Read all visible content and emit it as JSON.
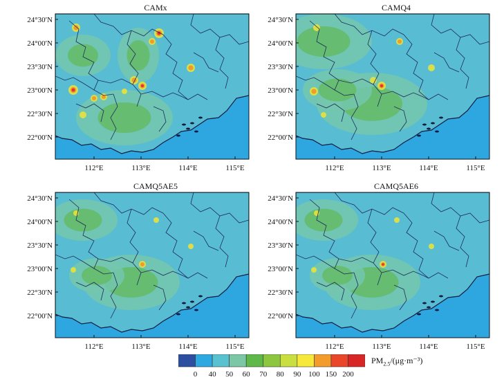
{
  "panels": [
    {
      "title": "CAMx"
    },
    {
      "title": "CAMQ4"
    },
    {
      "title": "CAMQ5AE5"
    },
    {
      "title": "CAMQ5AE6"
    }
  ],
  "lat_ticks": [
    "24°30′N",
    "24°00′N",
    "23°30′N",
    "23°00′N",
    "22°30′N",
    "22°00′N"
  ],
  "lon_ticks": [
    "112°E",
    "113°E",
    "114°E",
    "115°E"
  ],
  "colorbar": {
    "ticks": [
      "0",
      "40",
      "50",
      "60",
      "70",
      "80",
      "90",
      "100",
      "150",
      "200"
    ],
    "colors": [
      "#2c4fa2",
      "#2da8e0",
      "#58c2d0",
      "#7cc7a6",
      "#5fb84a",
      "#8dc73f",
      "#c9df3f",
      "#f6e93a",
      "#f39c2c",
      "#e9462a",
      "#d82626"
    ],
    "unit_prefix": "PM",
    "unit_sub": "2.5",
    "unit_suffix": "/(μg·m⁻³)"
  },
  "map_colors": {
    "sea": "#2ea7e0",
    "land_low": "#58bdd3",
    "land_mid": "#74c7ad",
    "land_high": "#62b957",
    "hot_yellow": "#e7e13d",
    "hot_orange": "#f19b2b",
    "hot_red": "#e2352a",
    "border": "#1c2a5a",
    "coast": "#0f1a40"
  }
}
